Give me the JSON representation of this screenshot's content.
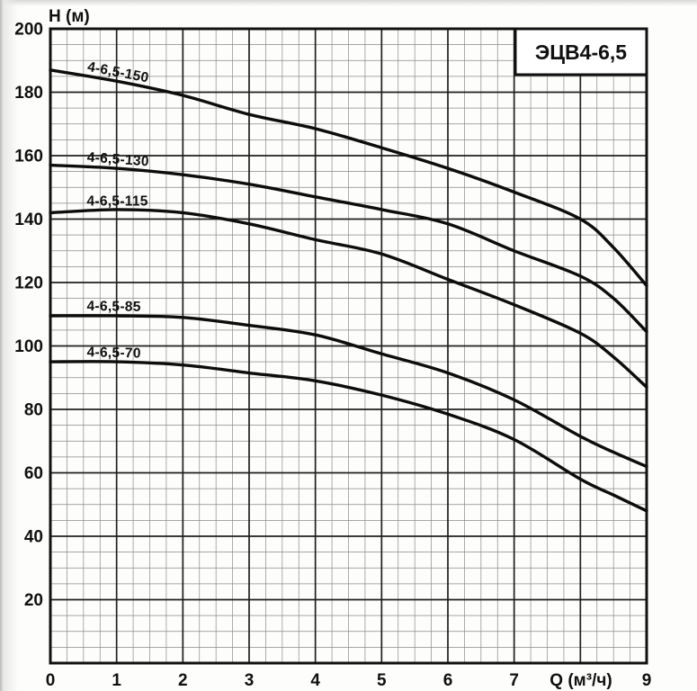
{
  "chart_data": {
    "type": "line",
    "title": "ЭЦВ4-6,5",
    "xlabel": "Q (м³/ч)",
    "ylabel": "Н (м)",
    "xlim": [
      0,
      9
    ],
    "ylim": [
      0,
      200
    ],
    "grid": true,
    "x_major_step": 1,
    "y_major_step": 20,
    "x_minor_step": 0.25,
    "y_minor_step": 5,
    "x_tick_labels": [
      "0",
      "1",
      "2",
      "3",
      "4",
      "5",
      "6",
      "7",
      "",
      "9"
    ],
    "xlabel_replaces_tick": 8,
    "y_ticks": [
      20,
      40,
      60,
      80,
      100,
      120,
      140,
      160,
      180,
      200
    ],
    "legend_position": "labels-on-curves",
    "series": [
      {
        "name": "4-6,5-150",
        "points": [
          [
            0,
            187
          ],
          [
            1,
            183.5
          ],
          [
            2,
            179
          ],
          [
            3,
            173
          ],
          [
            4,
            168.5
          ],
          [
            5,
            162.5
          ],
          [
            6,
            156
          ],
          [
            7,
            148.5
          ],
          [
            8,
            140
          ],
          [
            8.5,
            131
          ],
          [
            9,
            119
          ]
        ]
      },
      {
        "name": "4-6,5-130",
        "points": [
          [
            0,
            157
          ],
          [
            1,
            156
          ],
          [
            2,
            154
          ],
          [
            3,
            151
          ],
          [
            4,
            147
          ],
          [
            5,
            143
          ],
          [
            6,
            138.5
          ],
          [
            7,
            130
          ],
          [
            8,
            122
          ],
          [
            8.5,
            115
          ],
          [
            9,
            104.5
          ]
        ]
      },
      {
        "name": "4-6,5-115",
        "points": [
          [
            0,
            142
          ],
          [
            1,
            143
          ],
          [
            2,
            142
          ],
          [
            3,
            138.5
          ],
          [
            4,
            133.5
          ],
          [
            5,
            129
          ],
          [
            6,
            121
          ],
          [
            7,
            113
          ],
          [
            8,
            104
          ],
          [
            8.5,
            96.5
          ],
          [
            9,
            87
          ]
        ]
      },
      {
        "name": "4-6,5-85",
        "points": [
          [
            0,
            109.5
          ],
          [
            1,
            109.5
          ],
          [
            2,
            109
          ],
          [
            3,
            106.5
          ],
          [
            4,
            103.5
          ],
          [
            5,
            97.5
          ],
          [
            6,
            91.5
          ],
          [
            7,
            83
          ],
          [
            8,
            71.5
          ],
          [
            8.5,
            66.5
          ],
          [
            9,
            62
          ]
        ]
      },
      {
        "name": "4-6,5-70",
        "points": [
          [
            0,
            95
          ],
          [
            1,
            95
          ],
          [
            2,
            94
          ],
          [
            3,
            91.5
          ],
          [
            4,
            89
          ],
          [
            5,
            84.5
          ],
          [
            6,
            78.5
          ],
          [
            7,
            70.5
          ],
          [
            8,
            58
          ],
          [
            8.5,
            53
          ],
          [
            9,
            48
          ]
        ]
      }
    ],
    "colors": {
      "paper": "#fdfdfb",
      "grid_minor": "#8a8a8a",
      "grid_major": "#1f1f1f",
      "frame": "#111111",
      "curve": "#0d0d0d",
      "text": "#101010",
      "title_box_fill": "#ffffff"
    }
  }
}
